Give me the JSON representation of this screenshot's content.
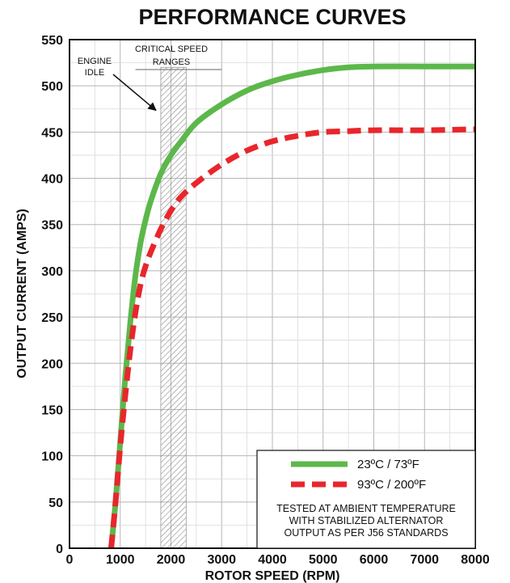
{
  "chart_data": {
    "type": "line",
    "title": "PERFORMANCE CURVES",
    "xlabel": "ROTOR SPEED (RPM)",
    "ylabel": "OUTPUT CURRENT (AMPS)",
    "xlim": [
      0,
      8000
    ],
    "ylim": [
      0,
      550
    ],
    "xticks": [
      0,
      1000,
      2000,
      3000,
      4000,
      5000,
      6000,
      7000,
      8000
    ],
    "yticks": [
      0,
      50,
      100,
      150,
      200,
      250,
      300,
      350,
      400,
      450,
      500,
      550
    ],
    "grid": true,
    "legend_position": "bottom-right",
    "series": [
      {
        "name": "23ºC / 73ºF",
        "style": "solid",
        "color": "#5cb84a",
        "x": [
          820,
          900,
          1000,
          1100,
          1200,
          1300,
          1400,
          1500,
          1600,
          1800,
          2000,
          2200,
          2500,
          3000,
          3500,
          4000,
          4500,
          5000,
          5500,
          6000,
          7000,
          8000
        ],
        "y": [
          0,
          45,
          115,
          185,
          245,
          295,
          330,
          355,
          375,
          405,
          425,
          440,
          460,
          480,
          495,
          505,
          512,
          517,
          520,
          521,
          521,
          521
        ]
      },
      {
        "name": "93ºC / 200ºF",
        "style": "dashed",
        "color": "#e8262c",
        "x": [
          820,
          900,
          1000,
          1100,
          1200,
          1300,
          1400,
          1500,
          1600,
          1800,
          2000,
          2200,
          2500,
          3000,
          3500,
          4000,
          4500,
          5000,
          5500,
          6000,
          7000,
          8000
        ],
        "y": [
          0,
          45,
          110,
          165,
          215,
          255,
          285,
          305,
          320,
          345,
          365,
          380,
          395,
          415,
          430,
          440,
          446,
          450,
          451,
          452,
          452,
          453
        ]
      }
    ],
    "annotations": {
      "engine_idle_line1": "ENGINE",
      "engine_idle_line2": "IDLE",
      "critical_line1": "CRITICAL SPEED",
      "critical_line2": "RANGES",
      "critical_ranges": [
        [
          1800,
          2300
        ]
      ],
      "critical_label_extent": [
        1300,
        3000
      ],
      "engine_idle_arrow_target": [
        1800,
        470
      ],
      "note_line1": "TESTED AT AMBIENT TEMPERATURE",
      "note_line2": "WITH  STABILIZED ALTERNATOR",
      "note_line3": "OUTPUT AS PER J56 STANDARDS"
    }
  }
}
